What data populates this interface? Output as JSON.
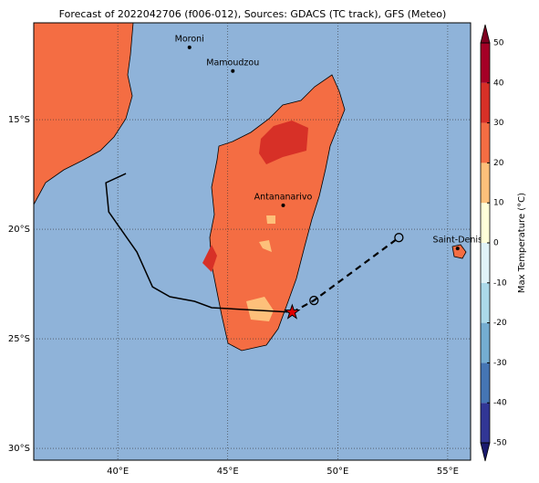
{
  "title": "Forecast of 2022042706 (f006-012), Sources: GDACS (TC track), GFS (Meteo)",
  "map": {
    "xlim": [
      36.18,
      56.04
    ],
    "ylim": [
      -30.54,
      -10.58
    ],
    "xticks": [
      {
        "value": 40,
        "label": "40°E"
      },
      {
        "value": 45,
        "label": "45°E"
      },
      {
        "value": 50,
        "label": "50°E"
      },
      {
        "value": 55,
        "label": "55°E"
      }
    ],
    "yticks": [
      {
        "value": -15,
        "label": "15°S"
      },
      {
        "value": -20,
        "label": "20°S"
      },
      {
        "value": -25,
        "label": "25°S"
      },
      {
        "value": -30,
        "label": "30°S"
      }
    ],
    "grid": true,
    "ocean_color": "#8fb3d9",
    "land_color": "#f46d43"
  },
  "cities": [
    {
      "name": "Moroni",
      "lon": 43.26,
      "lat": -11.7
    },
    {
      "name": "Mamoudzou",
      "lon": 45.23,
      "lat": -12.78
    },
    {
      "name": "Antananarivo",
      "lon": 47.52,
      "lat": -18.91
    },
    {
      "name": "Saint-Denis",
      "lon": 55.45,
      "lat": -20.88
    }
  ],
  "track": {
    "observed": {
      "lon": [
        40.37,
        39.46,
        39.59,
        40.87,
        41.58,
        42.37,
        43.49,
        44.27,
        47.93
      ],
      "lat": [
        -17.46,
        -17.88,
        -19.21,
        -21.04,
        -22.63,
        -23.08,
        -23.29,
        -23.58,
        -23.79
      ]
    },
    "forecast": {
      "lon": [
        47.93,
        48.92,
        52.78
      ],
      "lat": [
        -23.79,
        -23.25,
        -20.38
      ]
    }
  },
  "colorbar": {
    "label": "Max Temperature (°C)",
    "lim": [
      -50,
      50
    ],
    "ticks": [
      -50,
      -40,
      -30,
      -20,
      -10,
      0,
      10,
      20,
      30,
      40,
      50
    ],
    "colors": [
      "#313695",
      "#4575b4",
      "#74add1",
      "#abd9e9",
      "#e0f3f8",
      "#ffffd9",
      "#fdc07a",
      "#f46d43",
      "#d73027",
      "#a50026"
    ],
    "under_color": "#1a1a6e",
    "over_color": "#7f0020"
  }
}
